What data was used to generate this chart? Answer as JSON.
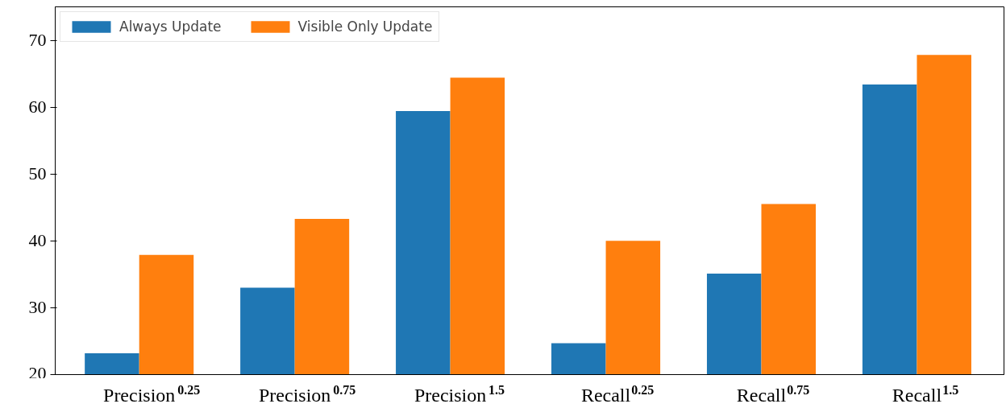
{
  "chart_data": {
    "type": "bar",
    "categories": [
      "Precision$^{0.25}$",
      "Precision$^{0.75}$",
      "Precision$^{1.5}$",
      "Recall$^{0.25}$",
      "Recall$^{0.75}$",
      "Recall$^{1.5}$"
    ],
    "series": [
      {
        "name": "Always Update",
        "color": "#1f77b4",
        "values": [
          23.2,
          33.0,
          59.4,
          24.7,
          35.1,
          63.4
        ]
      },
      {
        "name": "Visible Only Update",
        "color": "#ff7f0e",
        "values": [
          37.9,
          43.3,
          64.4,
          40.0,
          45.5,
          67.8
        ]
      }
    ],
    "ylim": [
      20,
      75
    ],
    "yticks": [
      20,
      30,
      40,
      50,
      60,
      70
    ],
    "grid": false,
    "legend": "top left"
  }
}
